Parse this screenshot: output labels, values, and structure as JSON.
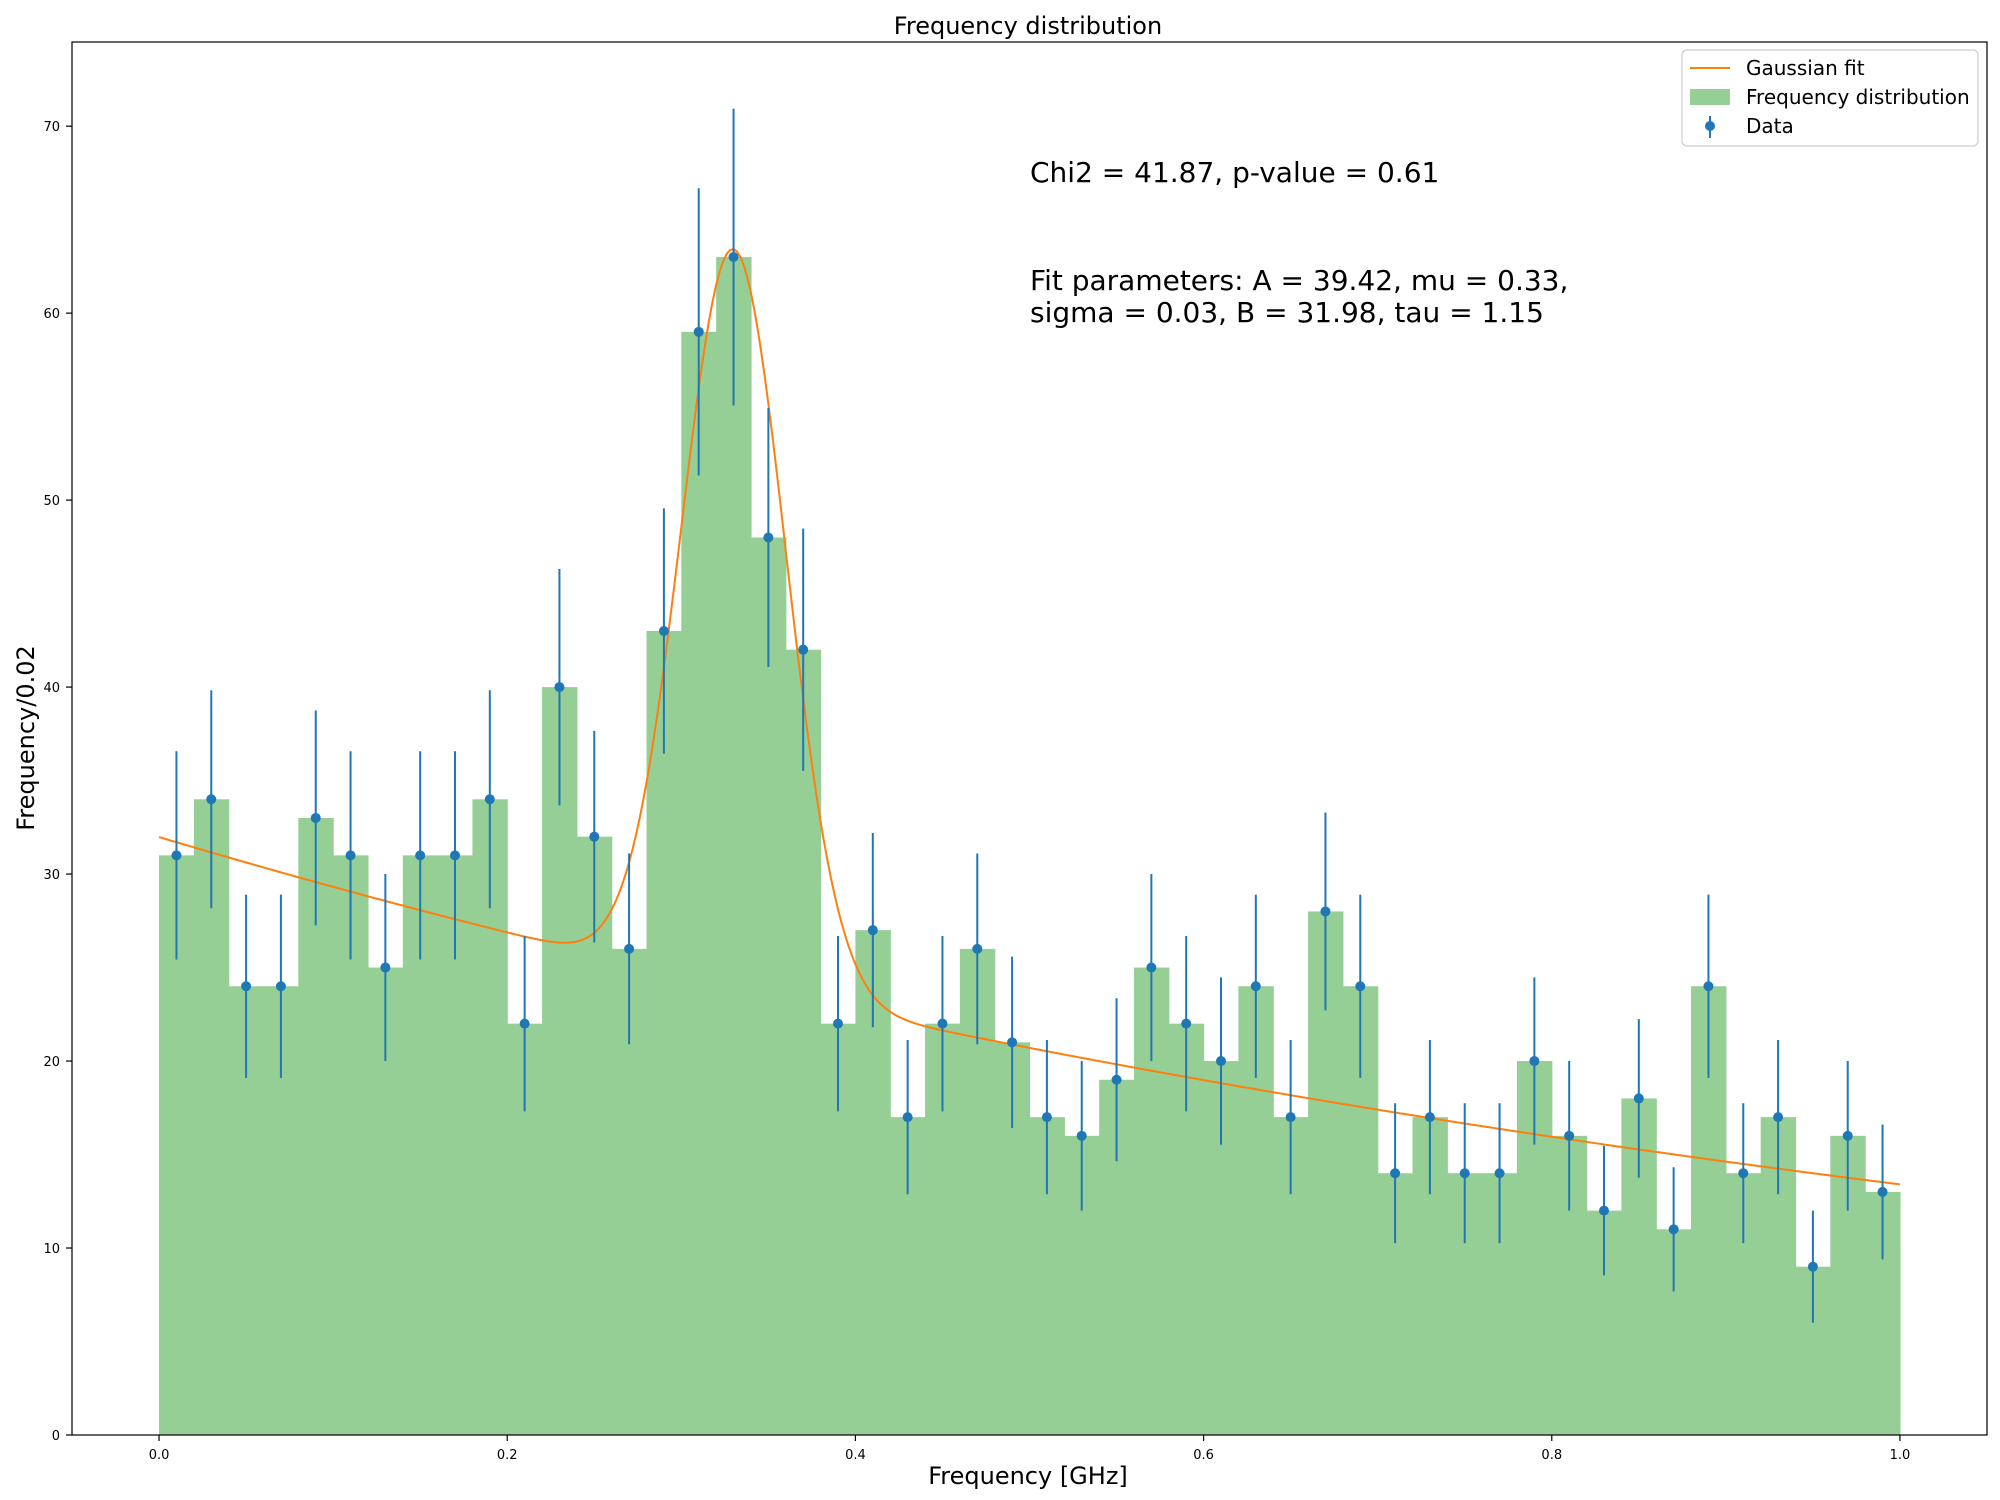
{
  "chart_data": {
    "type": "bar",
    "title": "Frequency distribution",
    "xlabel": "Frequency [GHz]",
    "ylabel": "Frequency/0.02",
    "xlim": [
      -0.05,
      1.05
    ],
    "ylim": [
      0,
      74.5
    ],
    "xticks": [
      "0.0",
      "0.2",
      "0.4",
      "0.6",
      "0.8",
      "1.0"
    ],
    "yticks": [
      "0",
      "10",
      "20",
      "30",
      "40",
      "50",
      "60",
      "70"
    ],
    "bin_width": 0.02,
    "bin_centers": [
      0.01,
      0.03,
      0.05,
      0.07,
      0.09,
      0.11,
      0.13,
      0.15,
      0.17,
      0.19,
      0.21,
      0.23,
      0.25,
      0.27,
      0.29,
      0.31,
      0.33,
      0.35,
      0.37,
      0.39,
      0.41,
      0.43,
      0.45,
      0.47,
      0.49,
      0.51,
      0.53,
      0.55,
      0.57,
      0.59,
      0.61,
      0.63,
      0.65,
      0.67,
      0.69,
      0.71,
      0.73,
      0.75,
      0.77,
      0.79,
      0.81,
      0.83,
      0.85,
      0.87,
      0.89,
      0.91,
      0.93,
      0.95,
      0.97,
      0.99
    ],
    "counts": [
      31,
      34,
      24,
      24,
      33,
      31,
      25,
      31,
      31,
      34,
      22,
      40,
      32,
      26,
      43,
      59,
      63,
      48,
      42,
      22,
      27,
      17,
      22,
      26,
      21,
      17,
      16,
      19,
      25,
      22,
      20,
      24,
      17,
      28,
      24,
      14,
      17,
      14,
      14,
      20,
      16,
      12,
      18,
      11,
      24,
      14,
      17,
      9,
      16,
      13
    ],
    "series": [
      {
        "name": "Gaussian fit",
        "kind": "line",
        "color": "#ff7f0e"
      },
      {
        "name": "Frequency distribution",
        "kind": "hist",
        "color": "#96cf96"
      },
      {
        "name": "Data",
        "kind": "errorbar",
        "color": "#1f77b4"
      }
    ],
    "fit_parameters": {
      "A": 39.42,
      "mu": 0.33,
      "sigma": 0.03,
      "B": 31.98,
      "tau": 1.15
    },
    "annotations": [
      "Chi2 = 41.87, p-value = 0.61",
      "Fit parameters: A = 39.42, mu = 0.33,",
      "sigma = 0.03, B = 31.98, tau = 1.15"
    ],
    "legend_position": "upper right",
    "grid": false
  }
}
